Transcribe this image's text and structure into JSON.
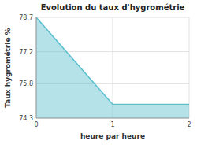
{
  "chart_data": {
    "type": "area",
    "title": "Evolution du taux d'hygrométrie",
    "xlabel": "heure par heure",
    "ylabel": "Taux hygrométrie %",
    "x": [
      0,
      1,
      2
    ],
    "values": [
      78.7,
      74.9,
      74.9
    ],
    "color": "#5bbfcf",
    "xlim": [
      0,
      2
    ],
    "ylim": [
      74.3,
      78.7
    ],
    "xticks": [
      0,
      1,
      2
    ],
    "yticks": [
      74.3,
      75.8,
      77.2,
      78.7
    ],
    "grid": true
  }
}
